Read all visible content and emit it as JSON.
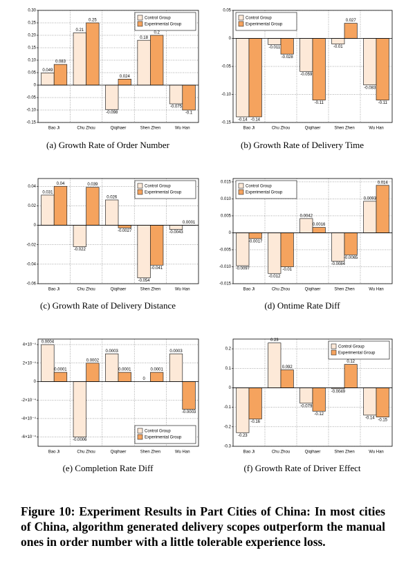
{
  "chart_data": [
    {
      "type": "bar",
      "caption": "(a)  Growth Rate of Order Number",
      "categories": [
        "Bao Ji",
        "Chu Zhou",
        "Qiqihaer",
        "Shen Zhen",
        "Wu Han"
      ],
      "series": [
        {
          "name": "Control Group",
          "color": "#fde9d8",
          "values": [
            0.049,
            0.21,
            -0.098,
            0.18,
            -0.075
          ]
        },
        {
          "name": "Experimental Group",
          "color": "#f5a35e",
          "values": [
            0.083,
            0.25,
            0.024,
            0.2,
            -0.1
          ]
        }
      ],
      "ylim": [
        -0.15,
        0.3
      ],
      "yticks": [
        {
          "value": -0.15,
          "label": "-0.15"
        },
        {
          "value": -0.1,
          "label": "-0.10"
        },
        {
          "value": -0.05,
          "label": "-0.05"
        },
        0,
        {
          "value": 0.05,
          "label": "0.05"
        },
        {
          "value": 0.1,
          "label": "0.10"
        },
        {
          "value": 0.15,
          "label": "0.15"
        },
        {
          "value": 0.2,
          "label": "0.20"
        },
        {
          "value": 0.25,
          "label": "0.25"
        },
        {
          "value": 0.3,
          "label": "0.30"
        }
      ],
      "grid": true,
      "legend": "upper right"
    },
    {
      "type": "bar",
      "caption": "(b)  Growth Rate of Delivery Time",
      "categories": [
        "Bao Ji",
        "Chu Zhou",
        "Qiqihaer",
        "Shen Zhen",
        "Wu Han"
      ],
      "series": [
        {
          "name": "Control Group",
          "color": "#fde9d8",
          "values": [
            -0.14,
            -0.011,
            -0.059,
            -0.01,
            -0.083
          ]
        },
        {
          "name": "Experimental Group",
          "color": "#f5a35e",
          "values": [
            -0.14,
            -0.028,
            -0.11,
            0.027,
            -0.11
          ]
        }
      ],
      "ylim": [
        -0.15,
        0.05
      ],
      "yticks": [
        -0.15,
        {
          "value": -0.1,
          "label": "-0.10"
        },
        -0.05,
        0,
        0.05
      ],
      "grid": true,
      "legend": "upper left"
    },
    {
      "type": "bar",
      "caption": "(c)  Growth Rate of Delivery Distance",
      "categories": [
        "Bao Ji",
        "Chu Zhou",
        "Qiqihaer",
        "Shen Zhen",
        "Wu Han"
      ],
      "series": [
        {
          "name": "Control Group",
          "color": "#fde9d8",
          "values": [
            0.031,
            -0.022,
            0.026,
            -0.054,
            -0.0043
          ]
        },
        {
          "name": "Experimental Group",
          "color": "#f5a35e",
          "values": [
            0.04,
            0.039,
            -0.0027,
            -0.041,
            0.0001
          ]
        }
      ],
      "ylim": [
        -0.06,
        0.048
      ],
      "yticks": [
        -0.06,
        -0.04,
        -0.02,
        0,
        0.02,
        0.04
      ],
      "grid": true,
      "legend": "upper right"
    },
    {
      "type": "bar",
      "caption": "(d)  Ontime Rate Diff",
      "categories": [
        "Bao Ji",
        "Chu Zhou",
        "Qiqihaer",
        "Shen Zhen",
        "Wu Han"
      ],
      "series": [
        {
          "name": "Control Group",
          "color": "#fde9d8",
          "values": [
            -0.0097,
            -0.012,
            0.0042,
            -0.0084,
            0.0093
          ]
        },
        {
          "name": "Experimental Group",
          "color": "#f5a35e",
          "values": [
            -0.0017,
            -0.01,
            0.0016,
            -0.0065,
            0.014
          ]
        }
      ],
      "ylim": [
        -0.015,
        0.016
      ],
      "yticks": [
        -0.015,
        {
          "value": -0.01,
          "label": "-0.010"
        },
        -0.005,
        0,
        0.005,
        {
          "value": 0.01,
          "label": "0.010"
        },
        0.015
      ],
      "grid": true,
      "legend": "upper left"
    },
    {
      "type": "bar",
      "caption": "(e)  Completion Rate Diff",
      "categories": [
        "Bao Ji",
        "Chu Zhou",
        "Qiqihaer",
        "Shen Zhen",
        "Wu Han"
      ],
      "series": [
        {
          "name": "Control Group",
          "color": "#fde9d8",
          "values": [
            0.0004,
            -0.0006,
            0.0003,
            0,
            0.0003
          ]
        },
        {
          "name": "Experimental Group",
          "color": "#f5a35e",
          "values": [
            0.0001,
            0.0002,
            0.0001,
            0.0001,
            -0.0003
          ]
        }
      ],
      "ylim": [
        -0.0007,
        0.00046
      ],
      "yticks": [
        {
          "value": -0.0006,
          "label": "-6×10⁻⁴"
        },
        {
          "value": -0.0004,
          "label": "-4×10⁻⁴"
        },
        {
          "value": -0.0002,
          "label": "-2×10⁻⁴"
        },
        0,
        {
          "value": 0.0002,
          "label": "2×10⁻⁴"
        },
        {
          "value": 0.0004,
          "label": "4×10⁻⁴"
        }
      ],
      "grid": true,
      "legend": "lower right"
    },
    {
      "type": "bar",
      "caption": "(f)  Growth Rate of Driver Effect",
      "categories": [
        "Bao Ji",
        "Chu Zhou",
        "Qiqihaer",
        "Shen Zhen",
        "Wu Han"
      ],
      "series": [
        {
          "name": "Control Group",
          "color": "#fde9d8",
          "values": [
            -0.23,
            0.23,
            -0.079,
            -0.0049,
            -0.14
          ]
        },
        {
          "name": "Experimental Group",
          "color": "#f5a35e",
          "values": [
            -0.16,
            0.092,
            -0.12,
            0.12,
            -0.15
          ]
        }
      ],
      "ylim": [
        -0.3,
        0.25
      ],
      "yticks": [
        -0.3,
        -0.2,
        -0.1,
        0,
        0.1,
        0.2
      ],
      "grid": true,
      "legend": "upper right"
    }
  ],
  "figure_caption": "Figure 10: Experiment Results in Part Cities of China: In most cities of China, algorithm generated delivery scopes outperform the manual ones in order number with a little tolerable experience loss."
}
